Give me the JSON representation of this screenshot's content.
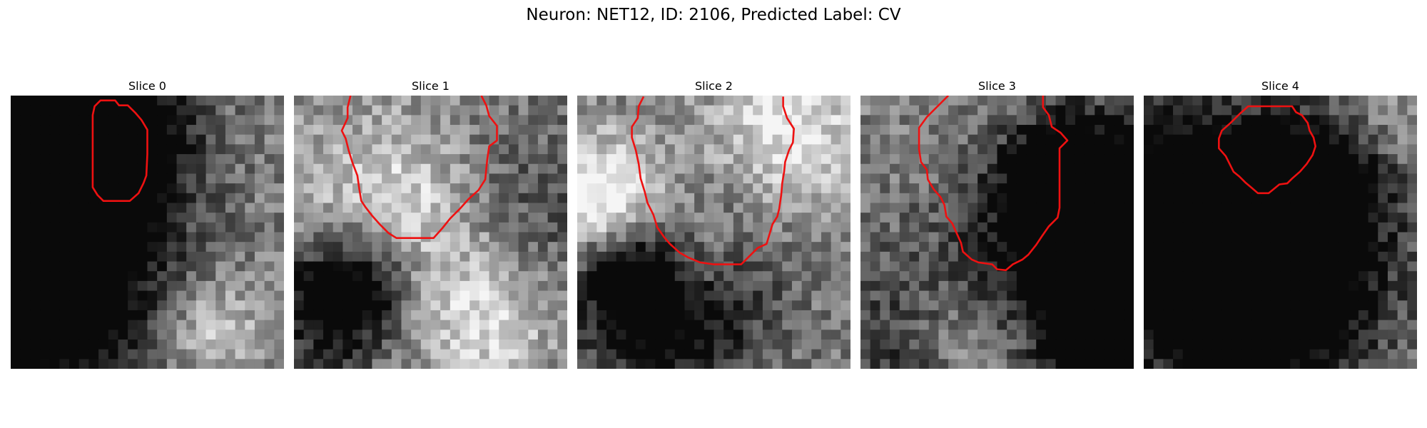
{
  "figure": {
    "title": "Neuron: NET12, ID: 2106, Predicted Label: CV"
  },
  "panels": [
    {
      "title": "Slice 0",
      "seed": 11,
      "contour": [
        [
          9.2,
          0.5
        ],
        [
          8.6,
          1.1
        ],
        [
          8.4,
          2.0
        ],
        [
          8.4,
          4.6
        ],
        [
          8.4,
          6.8
        ],
        [
          8.4,
          9.4
        ],
        [
          8.9,
          10.2
        ],
        [
          9.5,
          10.8
        ],
        [
          11,
          10.8
        ],
        [
          12.2,
          10.8
        ],
        [
          13.1,
          10.0
        ],
        [
          13.6,
          9.0
        ],
        [
          13.9,
          8.2
        ],
        [
          14.0,
          6.0
        ],
        [
          14.0,
          3.5
        ],
        [
          13.4,
          2.5
        ],
        [
          12.8,
          1.8
        ],
        [
          12.0,
          1.0
        ],
        [
          11.1,
          1.0
        ],
        [
          10.7,
          0.5
        ]
      ],
      "color": "#ee1111"
    },
    {
      "title": "Slice 1",
      "seed": 23,
      "contour": [
        [
          5.8,
          0.0
        ],
        [
          5.5,
          1.2
        ],
        [
          5.5,
          2.3
        ],
        [
          4.9,
          3.6
        ],
        [
          5.3,
          4.4
        ],
        [
          5.6,
          5.6
        ],
        [
          6.0,
          6.9
        ],
        [
          6.5,
          8.2
        ],
        [
          6.7,
          9.6
        ],
        [
          6.9,
          10.8
        ],
        [
          7.3,
          11.4
        ],
        [
          8.0,
          12.3
        ],
        [
          8.8,
          13.2
        ],
        [
          9.7,
          14.1
        ],
        [
          10.5,
          14.6
        ],
        [
          12.0,
          14.6
        ],
        [
          13.0,
          14.6
        ],
        [
          14.3,
          14.6
        ],
        [
          15.2,
          13.6
        ],
        [
          16.0,
          12.6
        ],
        [
          17.0,
          11.6
        ],
        [
          17.9,
          10.6
        ],
        [
          18.9,
          9.7
        ],
        [
          19.6,
          8.6
        ],
        [
          19.8,
          6.6
        ],
        [
          20.0,
          5.2
        ],
        [
          20.8,
          4.6
        ],
        [
          20.8,
          3.1
        ],
        [
          20.0,
          2.1
        ],
        [
          19.7,
          1.0
        ],
        [
          19.2,
          0.0
        ]
      ],
      "color": "#ee1111"
    },
    {
      "title": "Slice 2",
      "seed": 37,
      "contour": [
        [
          6.8,
          0.1
        ],
        [
          6.3,
          1.1
        ],
        [
          6.2,
          2.3
        ],
        [
          5.6,
          3.2
        ],
        [
          5.6,
          4.3
        ],
        [
          6.0,
          5.6
        ],
        [
          6.3,
          7.0
        ],
        [
          6.5,
          8.5
        ],
        [
          6.9,
          9.8
        ],
        [
          7.2,
          11.0
        ],
        [
          7.8,
          12.2
        ],
        [
          8.2,
          13.5
        ],
        [
          8.9,
          14.5
        ],
        [
          9.5,
          15.2
        ],
        [
          10.5,
          16.1
        ],
        [
          11.4,
          16.6
        ],
        [
          12.6,
          17.1
        ],
        [
          14.0,
          17.3
        ],
        [
          15.6,
          17.3
        ],
        [
          16.8,
          17.3
        ],
        [
          17.7,
          16.4
        ],
        [
          18.5,
          15.6
        ],
        [
          19.4,
          15.2
        ],
        [
          19.7,
          14.2
        ],
        [
          20.0,
          13.2
        ],
        [
          20.5,
          12.4
        ],
        [
          20.7,
          11.6
        ],
        [
          20.9,
          10.2
        ],
        [
          21.0,
          9.0
        ],
        [
          21.2,
          7.8
        ],
        [
          21.3,
          6.8
        ],
        [
          21.7,
          5.6
        ],
        [
          22.1,
          4.8
        ],
        [
          22.2,
          3.4
        ],
        [
          21.5,
          2.3
        ],
        [
          21.1,
          1.1
        ],
        [
          21.1,
          0.1
        ]
      ],
      "color": "#ee1111"
    },
    {
      "title": "Slice 3",
      "seed": 41,
      "contour": [
        [
          9.0,
          0.0
        ],
        [
          7.9,
          1.1
        ],
        [
          6.8,
          2.2
        ],
        [
          6.0,
          3.3
        ],
        [
          6.0,
          5.5
        ],
        [
          6.2,
          6.8
        ],
        [
          6.8,
          7.6
        ],
        [
          6.9,
          8.6
        ],
        [
          7.5,
          9.6
        ],
        [
          8.2,
          10.4
        ],
        [
          8.6,
          11.2
        ],
        [
          8.8,
          12.4
        ],
        [
          9.4,
          13.1
        ],
        [
          9.9,
          14.2
        ],
        [
          10.3,
          15.1
        ],
        [
          10.5,
          16.0
        ],
        [
          11.4,
          16.8
        ],
        [
          12.1,
          17.1
        ],
        [
          13.5,
          17.3
        ],
        [
          14.0,
          17.8
        ],
        [
          14.9,
          17.9
        ],
        [
          15.6,
          17.3
        ],
        [
          16.6,
          16.8
        ],
        [
          17.2,
          16.3
        ],
        [
          18.0,
          15.3
        ],
        [
          18.6,
          14.4
        ],
        [
          19.3,
          13.4
        ],
        [
          20.2,
          12.5
        ],
        [
          20.4,
          11.5
        ],
        [
          20.4,
          9.0
        ],
        [
          20.4,
          6.8
        ],
        [
          20.4,
          5.4
        ],
        [
          21.2,
          4.6
        ],
        [
          20.5,
          3.8
        ],
        [
          19.6,
          3.2
        ],
        [
          19.3,
          2.0
        ],
        [
          18.7,
          1.2
        ],
        [
          18.7,
          0.0
        ]
      ],
      "color": "#ee1111"
    },
    {
      "title": "Slice 4",
      "seed": 53,
      "contour": [
        [
          10.7,
          1.1
        ],
        [
          9.8,
          1.9
        ],
        [
          8.9,
          2.8
        ],
        [
          8.0,
          3.6
        ],
        [
          7.7,
          4.4
        ],
        [
          7.7,
          5.4
        ],
        [
          8.4,
          6.2
        ],
        [
          8.8,
          7.0
        ],
        [
          9.2,
          7.8
        ],
        [
          9.8,
          8.3
        ],
        [
          10.4,
          8.9
        ],
        [
          11.0,
          9.4
        ],
        [
          11.7,
          10.0
        ],
        [
          12.8,
          10.0
        ],
        [
          13.3,
          9.6
        ],
        [
          13.9,
          9.1
        ],
        [
          14.7,
          9.0
        ],
        [
          15.2,
          8.5
        ],
        [
          16.0,
          7.8
        ],
        [
          16.7,
          7.0
        ],
        [
          17.3,
          6.1
        ],
        [
          17.6,
          5.2
        ],
        [
          17.4,
          4.3
        ],
        [
          17.0,
          3.6
        ],
        [
          16.8,
          2.8
        ],
        [
          16.2,
          2.0
        ],
        [
          15.6,
          1.7
        ],
        [
          15.2,
          1.1
        ],
        [
          14.1,
          1.1
        ],
        [
          12.4,
          1.1
        ]
      ],
      "color": "#ee1111"
    }
  ]
}
